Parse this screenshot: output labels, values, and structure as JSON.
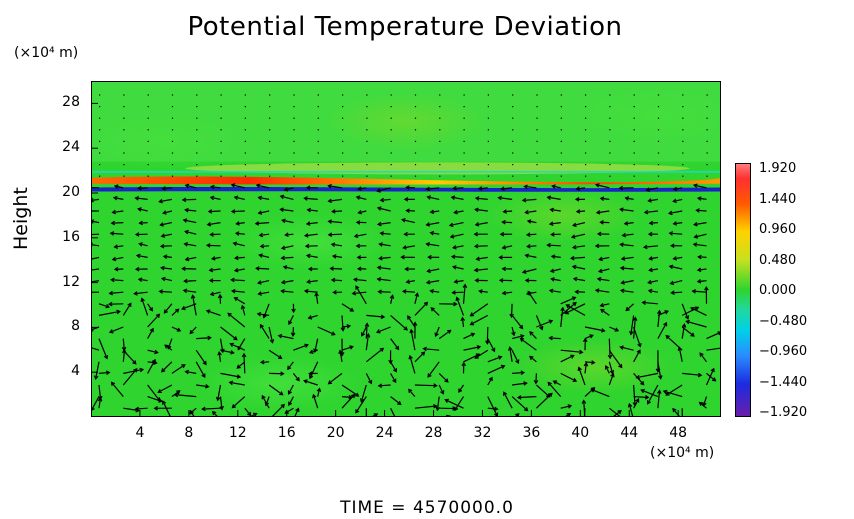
{
  "chart_data": {
    "type": "heatmap",
    "title": "Potential Temperature Deviation",
    "ylabel": "Height",
    "y_unit": "(×10⁴ m)",
    "x_unit": "(×10⁴ m)",
    "x_ticks": [
      "4",
      "8",
      "12",
      "16",
      "20",
      "24",
      "28",
      "32",
      "36",
      "40",
      "44",
      "48"
    ],
    "y_ticks": [
      "4",
      "8",
      "12",
      "16",
      "20",
      "24",
      "28"
    ],
    "xlim": [
      0,
      51.5
    ],
    "ylim": [
      0,
      30
    ],
    "colorbar": {
      "labels": [
        "1.920",
        "1.440",
        "0.960",
        "0.480",
        "0.000",
        "−0.480",
        "−0.960",
        "−1.440",
        "−1.920"
      ],
      "range": [
        -1.92,
        1.92
      ]
    },
    "background_value": 0.0,
    "features": [
      {
        "name": "warm band",
        "y": 21.0,
        "value": 1.9
      },
      {
        "name": "cold band",
        "y": 20.4,
        "value": -1.9
      },
      {
        "name": "upper warm layer",
        "y": 22.2,
        "value": 0.35
      }
    ],
    "overlay": "wind vectors",
    "grid": false
  },
  "footer": {
    "time_label": "TIME  =  4570000.0"
  }
}
